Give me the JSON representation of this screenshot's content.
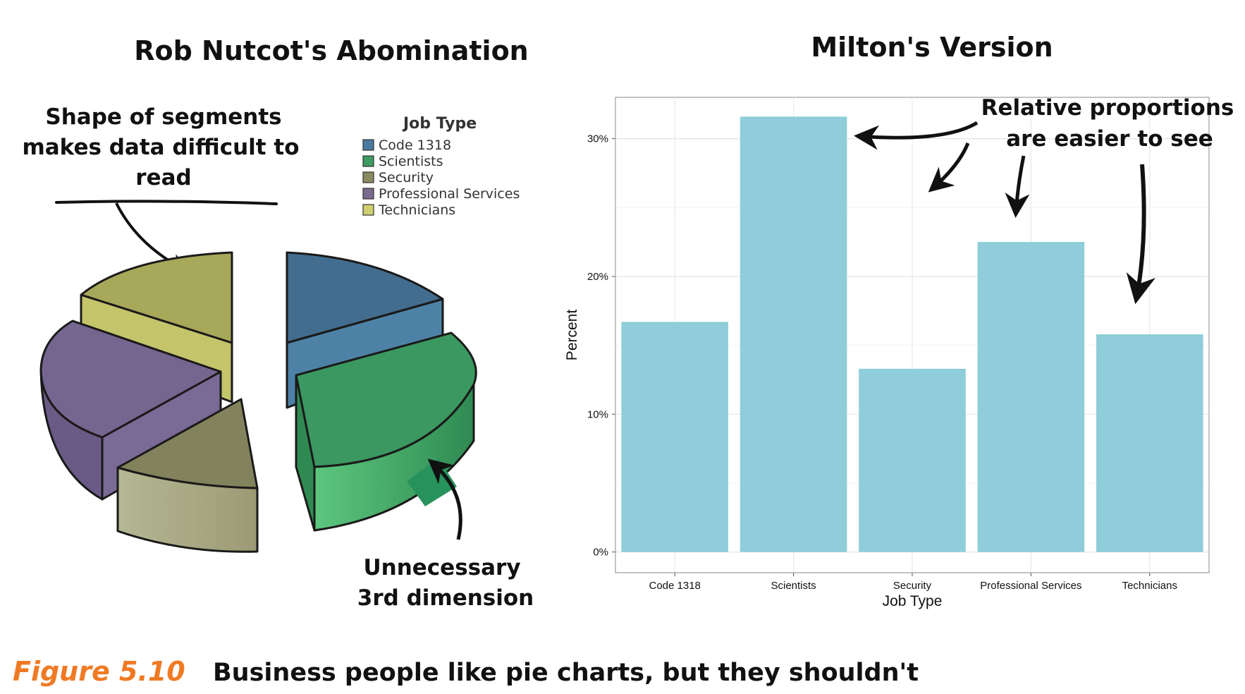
{
  "figure": {
    "label": "Figure 5.10",
    "caption": "Business people like pie charts, but they shouldn't",
    "label_color": "#f07a24"
  },
  "left_panel": {
    "title": "Rob Nutcot's Abomination",
    "annotation_top": [
      "Shape of segments",
      "makes data difficult to",
      "read"
    ],
    "annotation_bottom": [
      "Unnecessary",
      "3rd dimension"
    ],
    "legend_title": "Job Type",
    "legend": [
      {
        "label": "Code 1318",
        "color": "#4a7aa0"
      },
      {
        "label": "Scientists",
        "color": "#3d9a60"
      },
      {
        "label": "Security",
        "color": "#8a8a60"
      },
      {
        "label": "Professional Services",
        "color": "#7a6a90"
      },
      {
        "label": "Technicians",
        "color": "#cfcf70"
      }
    ]
  },
  "right_panel": {
    "title": "Milton's Version",
    "annotation": [
      "Relative proportions",
      "are easier to see"
    ]
  },
  "chart_data": {
    "type": "bar",
    "categories": [
      "Code 1318",
      "Scientists",
      "Security",
      "Professional Services",
      "Technicians"
    ],
    "values": [
      16.7,
      31.6,
      13.3,
      22.5,
      15.8
    ],
    "xlabel": "Job Type",
    "ylabel": "Percent",
    "ylim": [
      -1.5,
      33.0
    ],
    "yticks": [
      0,
      10,
      20,
      30
    ],
    "ytick_labels": [
      "0%",
      "10%",
      "20%",
      "30%"
    ],
    "bar_color": "#8ecdd9",
    "grid": true
  }
}
